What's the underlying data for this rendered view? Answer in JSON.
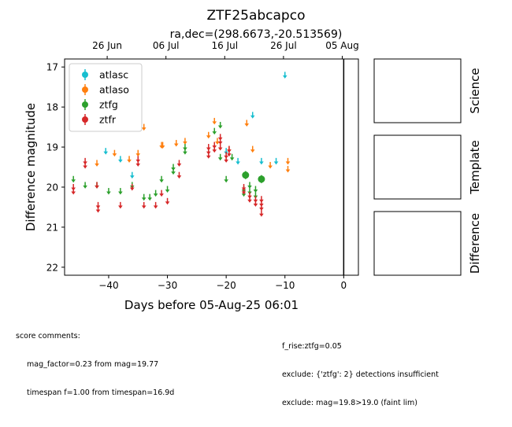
{
  "chart_data": {
    "type": "scatter",
    "title": "ZTF25abcapco",
    "subtitle": "ra,dec=(298.6673,-20.513569)",
    "xlabel": "Days before 05-Aug-25 06:01",
    "ylabel": "Difference magnitude",
    "xlim": [
      -47.5,
      2.5
    ],
    "ylim": [
      22.2,
      16.8
    ],
    "y_inverted": true,
    "x_ticks": [
      -40,
      -30,
      -20,
      -10,
      0
    ],
    "y_ticks": [
      17,
      18,
      19,
      20,
      21,
      22
    ],
    "top_axis_ticks": [
      {
        "x": -40.25,
        "label": "26 Jun"
      },
      {
        "x": -30.25,
        "label": "06 Jul"
      },
      {
        "x": -20.25,
        "label": "16 Jul"
      },
      {
        "x": -10.25,
        "label": "26 Jul"
      },
      {
        "x": -0.25,
        "label": "05 Aug"
      }
    ],
    "vertical_line_x": 0,
    "legend_position": "upper-left",
    "series": [
      {
        "name": "atlasc",
        "color": "#17becf",
        "detections": [],
        "upper_limits": [
          {
            "x": -40.5,
            "y": 19.1
          },
          {
            "x": -38.0,
            "y": 19.3
          },
          {
            "x": -36.0,
            "y": 19.7
          },
          {
            "x": -20.0,
            "y": 19.1
          },
          {
            "x": -18.0,
            "y": 19.35
          },
          {
            "x": -15.5,
            "y": 18.2
          },
          {
            "x": -14.0,
            "y": 19.35
          },
          {
            "x": -11.5,
            "y": 19.35
          },
          {
            "x": -10.0,
            "y": 17.2
          }
        ]
      },
      {
        "name": "atlaso",
        "color": "#ff7f0e",
        "detections": [],
        "upper_limits": [
          {
            "x": -42.0,
            "y": 19.4
          },
          {
            "x": -39.0,
            "y": 19.15
          },
          {
            "x": -36.5,
            "y": 19.3
          },
          {
            "x": -35.0,
            "y": 19.15
          },
          {
            "x": -34.0,
            "y": 18.5
          },
          {
            "x": -31.0,
            "y": 18.95
          },
          {
            "x": -30.8,
            "y": 18.95
          },
          {
            "x": -28.5,
            "y": 18.9
          },
          {
            "x": -27.0,
            "y": 18.85
          },
          {
            "x": -23.0,
            "y": 18.7
          },
          {
            "x": -22.0,
            "y": 18.35
          },
          {
            "x": -21.5,
            "y": 18.85
          },
          {
            "x": -19.5,
            "y": 19.05
          },
          {
            "x": -16.5,
            "y": 18.4
          },
          {
            "x": -15.5,
            "y": 19.05
          },
          {
            "x": -12.5,
            "y": 19.45
          },
          {
            "x": -9.5,
            "y": 19.35
          },
          {
            "x": -9.5,
            "y": 19.55
          }
        ]
      },
      {
        "name": "ztfg",
        "color": "#2ca02c",
        "detections": [
          {
            "x": -16.7,
            "y": 19.7,
            "err": 0.1
          },
          {
            "x": -14.0,
            "y": 19.8,
            "err": 0.1
          }
        ],
        "upper_limits": [
          {
            "x": -46.0,
            "y": 19.8
          },
          {
            "x": -44.0,
            "y": 19.95
          },
          {
            "x": -42.0,
            "y": 19.95
          },
          {
            "x": -40.0,
            "y": 20.1
          },
          {
            "x": -38.0,
            "y": 20.1
          },
          {
            "x": -36.0,
            "y": 19.95
          },
          {
            "x": -34.0,
            "y": 20.25
          },
          {
            "x": -33.0,
            "y": 20.25
          },
          {
            "x": -32.0,
            "y": 20.15
          },
          {
            "x": -31.0,
            "y": 19.8
          },
          {
            "x": -30.0,
            "y": 20.05
          },
          {
            "x": -29.0,
            "y": 19.6
          },
          {
            "x": -29.0,
            "y": 19.5
          },
          {
            "x": -27.0,
            "y": 19.0
          },
          {
            "x": -27.0,
            "y": 19.1
          },
          {
            "x": -22.0,
            "y": 18.6
          },
          {
            "x": -21.0,
            "y": 18.45
          },
          {
            "x": -21.0,
            "y": 19.25
          },
          {
            "x": -20.0,
            "y": 19.8
          },
          {
            "x": -19.0,
            "y": 19.25
          },
          {
            "x": -17.0,
            "y": 20.05
          },
          {
            "x": -17.0,
            "y": 20.15
          },
          {
            "x": -16.0,
            "y": 19.95
          },
          {
            "x": -16.0,
            "y": 20.1
          },
          {
            "x": -15.0,
            "y": 20.05
          },
          {
            "x": -15.0,
            "y": 20.2
          }
        ]
      },
      {
        "name": "ztfr",
        "color": "#d62728",
        "detections": [],
        "upper_limits": [
          {
            "x": -46.0,
            "y": 20.0
          },
          {
            "x": -46.0,
            "y": 20.1
          },
          {
            "x": -44.0,
            "y": 19.35
          },
          {
            "x": -44.0,
            "y": 19.45
          },
          {
            "x": -42.0,
            "y": 19.95
          },
          {
            "x": -41.8,
            "y": 20.45
          },
          {
            "x": -41.8,
            "y": 20.55
          },
          {
            "x": -38.0,
            "y": 20.45
          },
          {
            "x": -36.0,
            "y": 20.0
          },
          {
            "x": -35.0,
            "y": 19.3
          },
          {
            "x": -35.0,
            "y": 19.4
          },
          {
            "x": -34.0,
            "y": 20.45
          },
          {
            "x": -32.0,
            "y": 20.45
          },
          {
            "x": -31.0,
            "y": 20.15
          },
          {
            "x": -30.0,
            "y": 20.35
          },
          {
            "x": -28.0,
            "y": 19.7
          },
          {
            "x": -28.0,
            "y": 19.4
          },
          {
            "x": -23.0,
            "y": 19.0
          },
          {
            "x": -23.0,
            "y": 19.1
          },
          {
            "x": -23.0,
            "y": 19.2
          },
          {
            "x": -22.0,
            "y": 18.95
          },
          {
            "x": -22.0,
            "y": 19.05
          },
          {
            "x": -21.0,
            "y": 18.75
          },
          {
            "x": -21.0,
            "y": 18.85
          },
          {
            "x": -21.0,
            "y": 19.0
          },
          {
            "x": -20.0,
            "y": 19.2
          },
          {
            "x": -20.0,
            "y": 19.3
          },
          {
            "x": -19.5,
            "y": 19.05
          },
          {
            "x": -19.5,
            "y": 19.15
          },
          {
            "x": -17.0,
            "y": 20.0
          },
          {
            "x": -17.0,
            "y": 20.1
          },
          {
            "x": -16.0,
            "y": 20.2
          },
          {
            "x": -16.0,
            "y": 20.3
          },
          {
            "x": -15.0,
            "y": 20.3
          },
          {
            "x": -15.0,
            "y": 20.4
          },
          {
            "x": -14.0,
            "y": 20.3
          },
          {
            "x": -14.0,
            "y": 20.4
          },
          {
            "x": -14.0,
            "y": 20.5
          },
          {
            "x": -14.0,
            "y": 20.65
          }
        ]
      }
    ]
  },
  "panels": {
    "science": "Science",
    "template": "Template",
    "difference": "Difference"
  },
  "comments": {
    "header": "score comments:",
    "left": [
      "mag_factor=0.23 from mag=19.77",
      "timespan f=1.00 from timespan=16.9d"
    ],
    "right": [
      "f_rise:ztfg=0.05",
      "exclude: {'ztfg': 2} detections insufficient",
      "exclude: mag=19.8>19.0 (faint lim)"
    ]
  }
}
